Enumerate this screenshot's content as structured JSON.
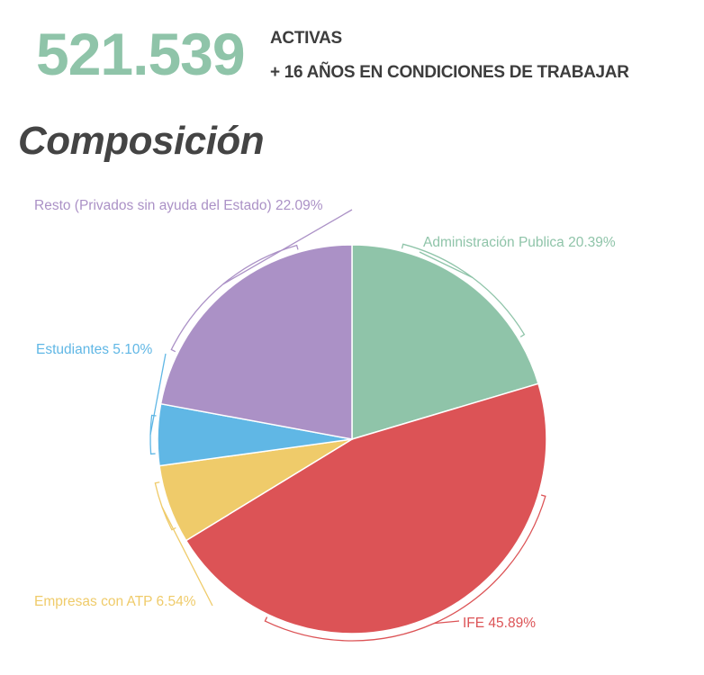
{
  "header": {
    "total": "521.539",
    "line1": "ACTIVAS",
    "line2": "+ 16 AÑOS EN CONDICIONES DE TRABAJAR",
    "accent": "#8fc4a9"
  },
  "section_title": "Composición",
  "chart_data": {
    "type": "pie",
    "title": "Composición",
    "start": "top, clockwise",
    "slices": [
      {
        "label": "Administración Publica",
        "value": 20.39,
        "text": "Administración Publica 20.39%",
        "color": "#8fc4a9"
      },
      {
        "label": "IFE",
        "value": 45.89,
        "text": "IFE 45.89%",
        "color": "#dc5356"
      },
      {
        "label": "Empresas con ATP",
        "value": 6.54,
        "text": "Empresas con ATP 6.54%",
        "color": "#efcb6a"
      },
      {
        "label": "Estudiantes",
        "value": 5.1,
        "text": "Estudiantes 5.10%",
        "color": "#60b7e5"
      },
      {
        "label": "Resto (Privados sin ayuda del Estado)",
        "value": 22.09,
        "text": "Resto (Privados sin ayuda del Estado) 22.09%",
        "color": "#ab91c6"
      }
    ]
  }
}
